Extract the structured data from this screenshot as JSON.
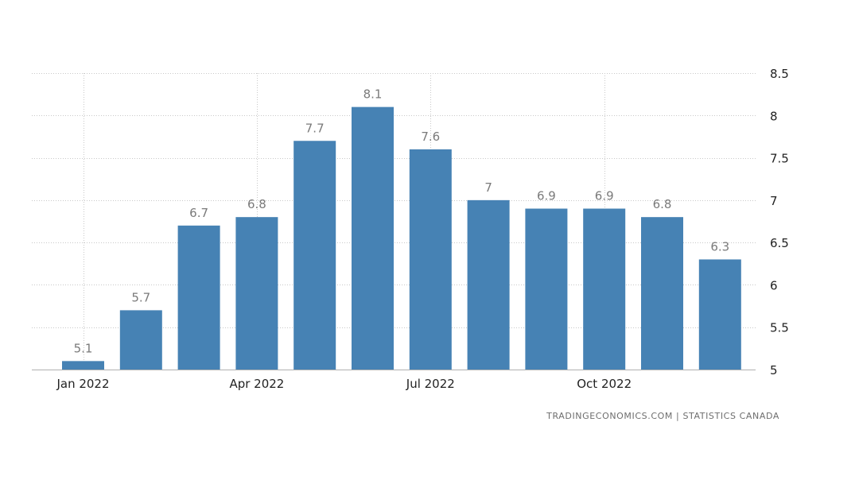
{
  "chart_data": {
    "type": "bar",
    "categories": [
      "Jan 2022",
      "Feb 2022",
      "Mar 2022",
      "Apr 2022",
      "May 2022",
      "Jun 2022",
      "Jul 2022",
      "Aug 2022",
      "Sep 2022",
      "Oct 2022",
      "Nov 2022",
      "Dec 2022"
    ],
    "values": [
      5.1,
      5.7,
      6.7,
      6.8,
      7.7,
      8.1,
      7.6,
      7.0,
      6.9,
      6.9,
      6.8,
      6.3
    ],
    "value_labels": [
      "5.1",
      "5.7",
      "6.7",
      "6.8",
      "7.7",
      "8.1",
      "7.6",
      "7",
      "6.9",
      "6.9",
      "6.8",
      "6.3"
    ],
    "x_tick_labels": [
      {
        "category": "Jan 2022",
        "label": "Jan 2022"
      },
      {
        "category": "Apr 2022",
        "label": "Apr 2022"
      },
      {
        "category": "Jul 2022",
        "label": "Jul 2022"
      },
      {
        "category": "Oct 2022",
        "label": "Oct 2022"
      }
    ],
    "y_ticks": [
      5,
      5.5,
      6,
      6.5,
      7,
      7.5,
      8,
      8.5
    ],
    "y_tick_labels": [
      "5",
      "5.5",
      "6",
      "6.5",
      "7",
      "7.5",
      "8",
      "8.5"
    ],
    "ylim": [
      5,
      8.5
    ],
    "y_axis_side": "right",
    "grid": true,
    "bar_color": "#4682b4",
    "title": "",
    "xlabel": "",
    "ylabel": ""
  },
  "source": "TRADINGECONOMICS.COM  |  STATISTICS CANADA"
}
